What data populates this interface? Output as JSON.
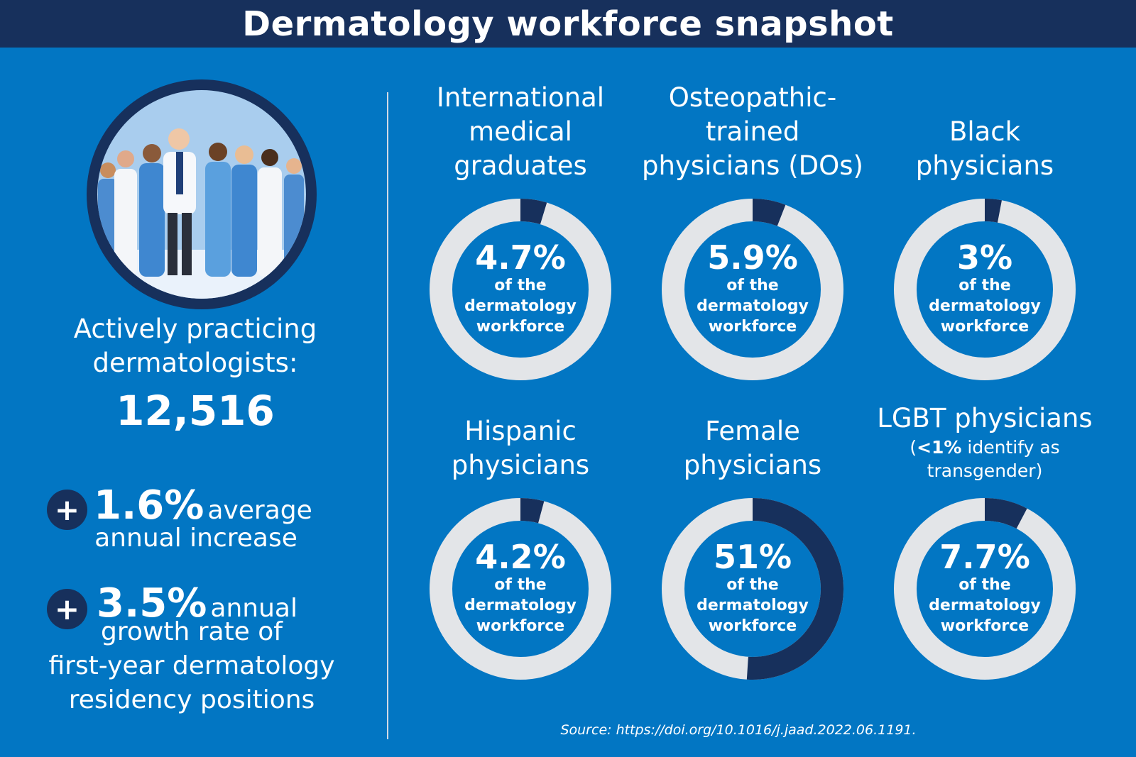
{
  "title": "Dermatology workforce snapshot",
  "left": {
    "label_line1": "Actively practicing",
    "label_line2": "dermatologists:",
    "count": "12,516",
    "stat1": {
      "plus": "+",
      "value": "1.6%",
      "text_inline": "average",
      "text_line2": "annual increase"
    },
    "stat2": {
      "plus": "+",
      "value": "3.5%",
      "text_inline": "annual",
      "text_line2": "growth rate of",
      "text_line3": "first-year dermatology",
      "text_line4": "residency positions"
    }
  },
  "chart_data": {
    "type": "pie",
    "style": "donut",
    "unit": "% of the dermatology workforce",
    "center_caption": [
      "of the",
      "dermatology",
      "workforce"
    ],
    "items": [
      {
        "title": [
          "International",
          "medical",
          "graduates"
        ],
        "label": "4.7%",
        "value": 4.7
      },
      {
        "title": [
          "Osteopathic-",
          "trained",
          "physicians (DOs)"
        ],
        "label": "5.9%",
        "value": 5.9
      },
      {
        "title": [
          "Black",
          "physicians"
        ],
        "label": "3%",
        "value": 3
      },
      {
        "title": [
          "Hispanic",
          "physicians"
        ],
        "label": "4.2%",
        "value": 4.2
      },
      {
        "title": [
          "Female",
          "physicians"
        ],
        "label": "51%",
        "value": 51
      },
      {
        "title": [
          "LGBT physicians"
        ],
        "subtitle_bold": "<1%",
        "subtitle_rest": " identify as",
        "subtitle_line2": "transgender)",
        "subtitle_open": "(",
        "label": "7.7%",
        "value": 7.7
      }
    ],
    "colors": {
      "filled": "#17305c",
      "track": "#e3e5e8",
      "background": "#0276c3"
    }
  },
  "source": "Source: https://doi.org/10.1016/j.jaad.2022.06.1191."
}
